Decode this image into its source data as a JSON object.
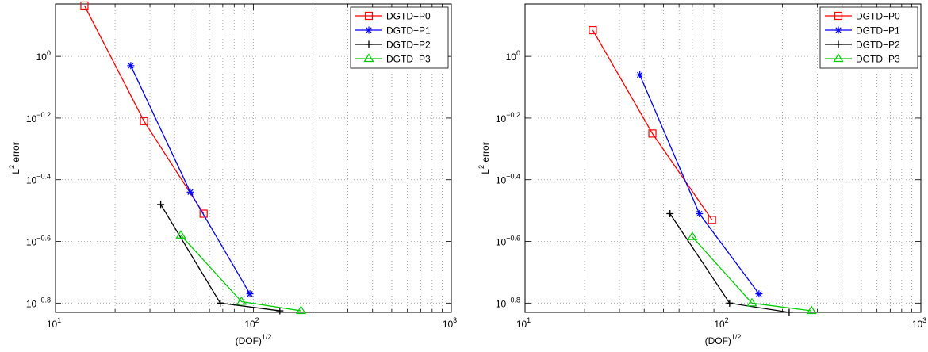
{
  "chart_data": [
    {
      "type": "line",
      "xscale": "log",
      "yscale": "log",
      "xlim": [
        10,
        1000
      ],
      "ylim_exponent": [
        -0.83,
        0.17
      ],
      "xticks": [
        {
          "base": "10",
          "exp": "1",
          "value": 10
        },
        {
          "base": "10",
          "exp": "2",
          "value": 100
        },
        {
          "base": "10",
          "exp": "3",
          "value": 1000
        }
      ],
      "yticks": [
        {
          "base": "10",
          "exp": "0",
          "value": 0
        },
        {
          "base": "10",
          "exp": "−0.2",
          "value": -0.2
        },
        {
          "base": "10",
          "exp": "−0.4",
          "value": -0.4
        },
        {
          "base": "10",
          "exp": "−0.6",
          "value": -0.6
        },
        {
          "base": "10",
          "exp": "−0.8",
          "value": -0.8
        }
      ],
      "xlabel": {
        "base": "(DOF)",
        "sup": "1/2"
      },
      "ylabel": {
        "base": "L",
        "sup": "2",
        "rest": " error"
      },
      "grid": "dotted",
      "legend_position": "top-right",
      "series": [
        {
          "name": "DGTD−P0",
          "color": "#ff0000",
          "marker": "square",
          "x": [
            14,
            28,
            56
          ],
          "y_exponent": [
            0.165,
            -0.21,
            -0.51
          ]
        },
        {
          "name": "DGTD−P1",
          "color": "#0000ff",
          "marker": "star",
          "x": [
            24,
            48,
            96
          ],
          "y_exponent": [
            -0.03,
            -0.44,
            -0.77
          ]
        },
        {
          "name": "DGTD−P2",
          "color": "#000000",
          "marker": "plus",
          "x": [
            34,
            68,
            136
          ],
          "y_exponent": [
            -0.48,
            -0.8,
            -0.825
          ]
        },
        {
          "name": "DGTD−P3",
          "color": "#00cc00",
          "marker": "triangle",
          "x": [
            43,
            87,
            174
          ],
          "y_exponent": [
            -0.58,
            -0.795,
            -0.825
          ]
        }
      ]
    },
    {
      "type": "line",
      "xscale": "log",
      "yscale": "log",
      "xlim": [
        10,
        1000
      ],
      "ylim_exponent": [
        -0.83,
        0.17
      ],
      "xticks": [
        {
          "base": "10",
          "exp": "1",
          "value": 10
        },
        {
          "base": "10",
          "exp": "2",
          "value": 100
        },
        {
          "base": "10",
          "exp": "3",
          "value": 1000
        }
      ],
      "yticks": [
        {
          "base": "10",
          "exp": "0",
          "value": 0
        },
        {
          "base": "10",
          "exp": "−0.2",
          "value": -0.2
        },
        {
          "base": "10",
          "exp": "−0.4",
          "value": -0.4
        },
        {
          "base": "10",
          "exp": "−0.6",
          "value": -0.6
        },
        {
          "base": "10",
          "exp": "−0.8",
          "value": -0.8
        }
      ],
      "xlabel": {
        "base": "(DOF)",
        "sup": "1/2"
      },
      "ylabel": {
        "base": "L",
        "sup": "2",
        "rest": " error"
      },
      "grid": "dotted",
      "legend_position": "top-right",
      "series": [
        {
          "name": "DGTD−P0",
          "color": "#ff0000",
          "marker": "square",
          "x": [
            22,
            44,
            88
          ],
          "y_exponent": [
            0.085,
            -0.25,
            -0.53
          ]
        },
        {
          "name": "DGTD−P1",
          "color": "#0000ff",
          "marker": "star",
          "x": [
            38,
            76,
            152
          ],
          "y_exponent": [
            -0.06,
            -0.51,
            -0.77
          ]
        },
        {
          "name": "DGTD−P2",
          "color": "#000000",
          "marker": "plus",
          "x": [
            54,
            108,
            216
          ],
          "y_exponent": [
            -0.51,
            -0.8,
            -0.83
          ]
        },
        {
          "name": "DGTD−P3",
          "color": "#00cc00",
          "marker": "triangle",
          "x": [
            70,
            140,
            280
          ],
          "y_exponent": [
            -0.585,
            -0.8,
            -0.825
          ]
        }
      ]
    }
  ]
}
